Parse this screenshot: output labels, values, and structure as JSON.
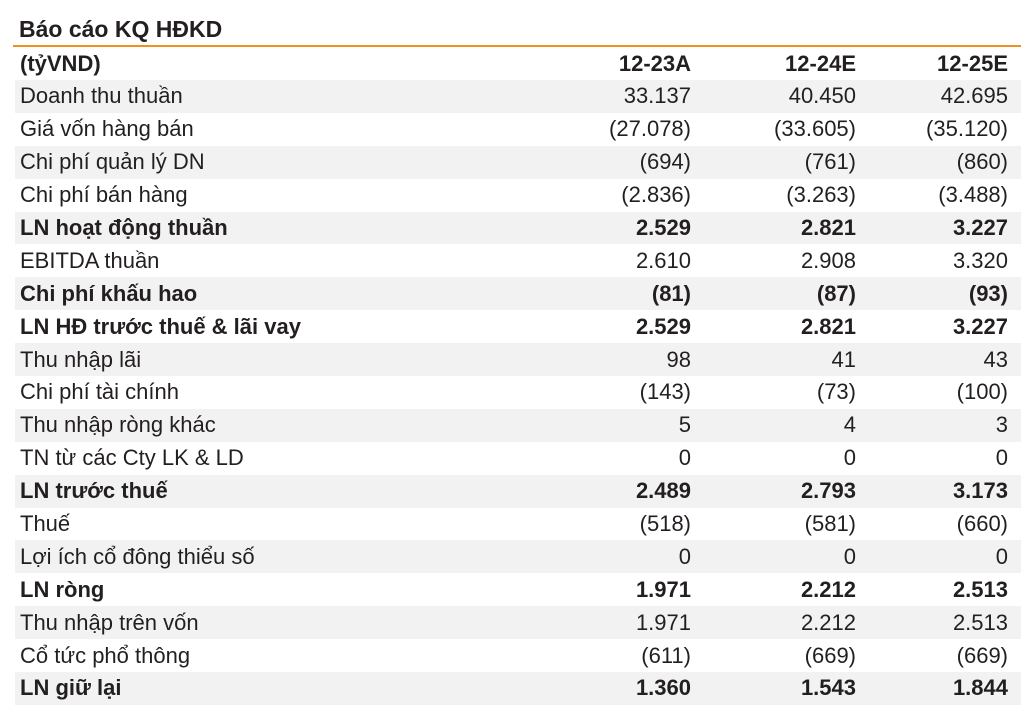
{
  "title": "Báo cáo KQ HĐKD",
  "accent_color": "#f0901e",
  "header": {
    "unit": "(tỷVND)",
    "columns": [
      "12-23A",
      "12-24E",
      "12-25E"
    ]
  },
  "rows": [
    {
      "label": "Doanh thu thuần",
      "bold": false,
      "values": [
        "33.137",
        "40.450",
        "42.695"
      ]
    },
    {
      "label": "Giá vốn hàng bán",
      "bold": false,
      "values": [
        "(27.078)",
        "(33.605)",
        "(35.120)"
      ]
    },
    {
      "label": "Chi phí quản lý DN",
      "bold": false,
      "values": [
        "(694)",
        "(761)",
        "(860)"
      ]
    },
    {
      "label": "Chi phí bán hàng",
      "bold": false,
      "values": [
        "(2.836)",
        "(3.263)",
        "(3.488)"
      ]
    },
    {
      "label": "LN hoạt động thuần",
      "bold": true,
      "values": [
        "2.529",
        "2.821",
        "3.227"
      ]
    },
    {
      "label": "EBITDA thuần",
      "bold": false,
      "values": [
        "2.610",
        "2.908",
        "3.320"
      ]
    },
    {
      "label": "Chi phí khấu hao",
      "bold": true,
      "values": [
        "(81)",
        "(87)",
        "(93)"
      ]
    },
    {
      "label": "LN HĐ trước thuế & lãi vay",
      "bold": true,
      "values": [
        "2.529",
        "2.821",
        "3.227"
      ]
    },
    {
      "label": "Thu nhập lãi",
      "bold": false,
      "values": [
        "98",
        "41",
        "43"
      ]
    },
    {
      "label": "Chi phí tài chính",
      "bold": false,
      "values": [
        "(143)",
        "(73)",
        "(100)"
      ]
    },
    {
      "label": "Thu nhập ròng khác",
      "bold": false,
      "values": [
        "5",
        "4",
        "3"
      ]
    },
    {
      "label": "TN từ các Cty LK & LD",
      "bold": false,
      "values": [
        "0",
        "0",
        "0"
      ]
    },
    {
      "label": "LN trước thuế",
      "bold": true,
      "values": [
        "2.489",
        "2.793",
        "3.173"
      ]
    },
    {
      "label": "Thuế",
      "bold": false,
      "values": [
        "(518)",
        "(581)",
        "(660)"
      ]
    },
    {
      "label": "Lợi ích cổ đông thiểu số",
      "bold": false,
      "values": [
        "0",
        "0",
        "0"
      ]
    },
    {
      "label": "LN ròng",
      "bold": true,
      "values": [
        "1.971",
        "2.212",
        "2.513"
      ]
    },
    {
      "label": "Thu nhập trên vốn",
      "bold": false,
      "values": [
        "1.971",
        "2.212",
        "2.513"
      ]
    },
    {
      "label": "Cổ tức phổ thông",
      "bold": false,
      "values": [
        "(611)",
        "(669)",
        "(669)"
      ]
    },
    {
      "label": "LN giữ lại",
      "bold": true,
      "values": [
        "1.360",
        "1.543",
        "1.844"
      ]
    }
  ]
}
